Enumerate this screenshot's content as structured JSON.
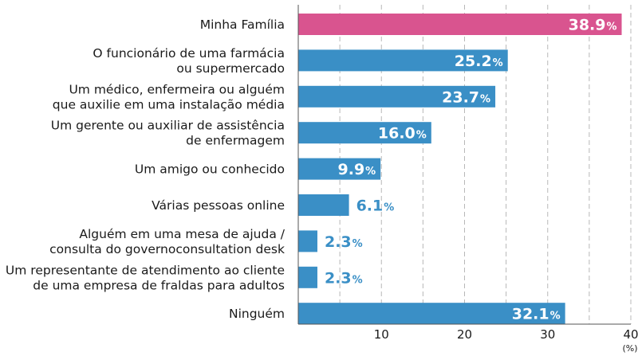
{
  "chart_data": {
    "type": "bar",
    "orientation": "horizontal",
    "categories": [
      [
        "Minha Família"
      ],
      [
        "O funcionário de uma farmácia",
        "ou supermercado"
      ],
      [
        "Um médico, enfermeira ou alguém",
        "que auxilie em uma instalação média"
      ],
      [
        "Um gerente ou auxiliar de assistência",
        "de enfermagem"
      ],
      [
        "Um amigo ou conhecido"
      ],
      [
        "Várias pessoas online"
      ],
      [
        "Alguém em uma mesa de ajuda /",
        "consulta do governoconsultation desk"
      ],
      [
        "Um representante de atendimento ao cliente",
        "de uma empresa de fraldas para adultos"
      ],
      [
        "Ninguém"
      ]
    ],
    "values": [
      38.9,
      25.2,
      23.7,
      16.0,
      9.9,
      6.1,
      2.3,
      2.3,
      32.1
    ],
    "value_labels": [
      "38.9",
      "25.2",
      "23.7",
      "16.0",
      "9.9",
      "6.1",
      "2.3",
      "2.3",
      "32.1"
    ],
    "value_suffix": "%",
    "xlim": [
      0,
      40
    ],
    "xticks": [
      10,
      20,
      30,
      40
    ],
    "xtick_labels": [
      "10",
      "20",
      "30",
      "40"
    ],
    "x_unit": "(%)",
    "grid": "vertical dashed every 5",
    "colors": {
      "bar": "#3a8fc6",
      "highlight": "#d9548f",
      "value_outside": "#3a8fc6",
      "value_inside": "#ffffff",
      "grid": "#b8b8b8",
      "axis": "#555555"
    },
    "highlight_index": 0
  }
}
